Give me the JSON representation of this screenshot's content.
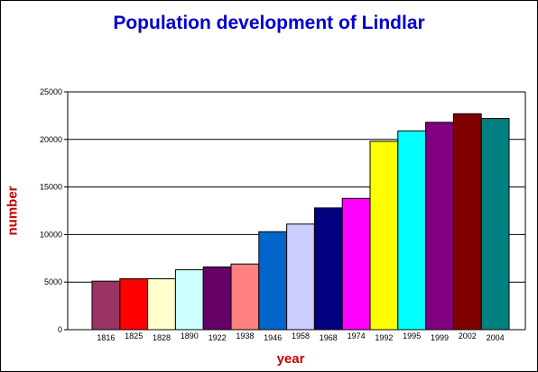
{
  "chart_data": {
    "type": "bar",
    "title": "Population development of Lindlar",
    "xlabel": "year",
    "ylabel": "number",
    "ylim": [
      0,
      25000
    ],
    "yticks": [
      0,
      5000,
      10000,
      15000,
      20000,
      25000
    ],
    "grid": true,
    "legend": "none",
    "categories": [
      "1816",
      "1825",
      "1828",
      "1890",
      "1922",
      "1938",
      "1946",
      "1958",
      "1968",
      "1974",
      "1992",
      "1995",
      "1999",
      "2002",
      "2004"
    ],
    "values": [
      5100,
      5350,
      5350,
      6300,
      6600,
      6900,
      10300,
      11100,
      12800,
      13800,
      19800,
      20900,
      21800,
      22700,
      22200
    ],
    "colors": [
      "#993366",
      "#ff0000",
      "#ffffcc",
      "#ccffff",
      "#660066",
      "#ff8080",
      "#0066cc",
      "#ccccff",
      "#000080",
      "#ff00ff",
      "#ffff00",
      "#00ffff",
      "#800080",
      "#800000",
      "#008080"
    ]
  }
}
